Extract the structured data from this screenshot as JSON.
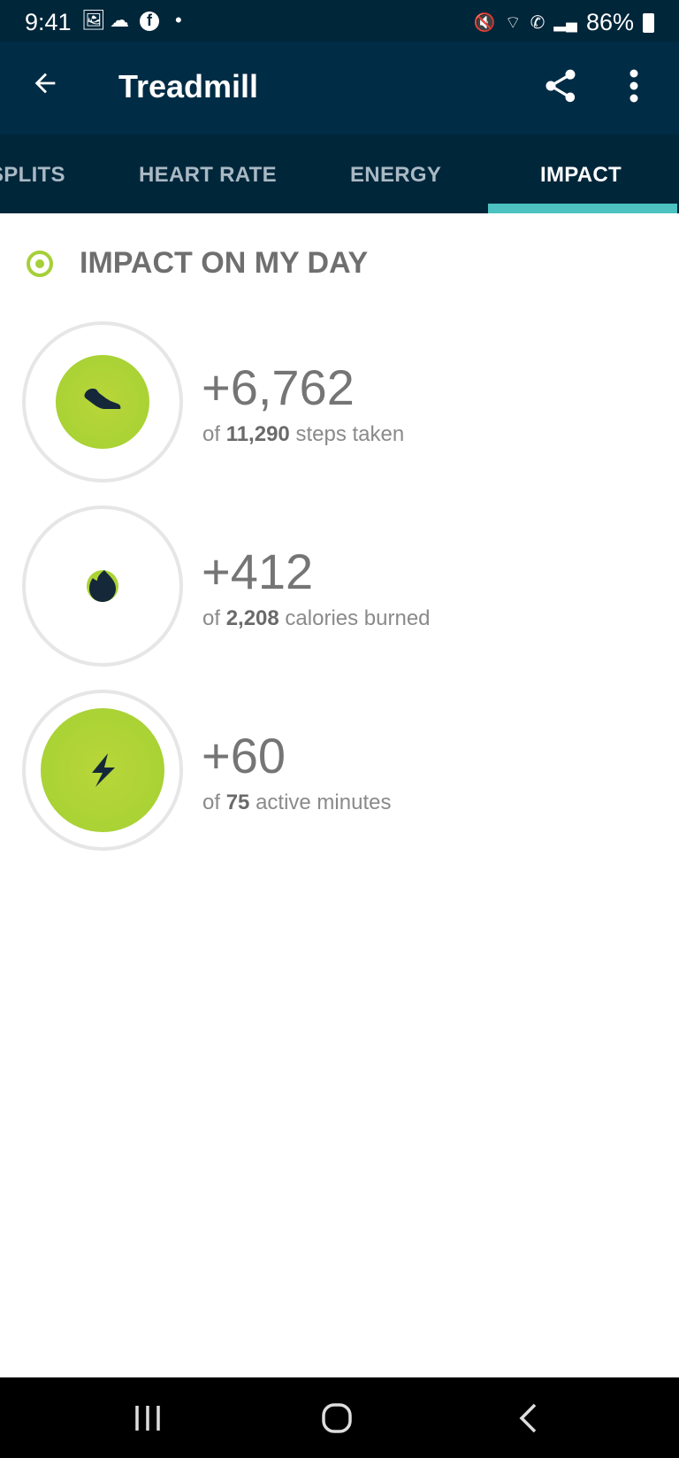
{
  "status_bar": {
    "time": "9:41",
    "battery": "86%",
    "icons": [
      "gallery-icon",
      "cloud-icon",
      "facebook-icon",
      "dot-icon",
      "mute-icon",
      "wifi-icon",
      "wifi-calling-icon",
      "signal-icon",
      "battery-icon"
    ]
  },
  "app_bar": {
    "title": "Treadmill",
    "back_icon": "arrow-left-icon",
    "share_icon": "share-icon",
    "more_icon": "more-vert-icon"
  },
  "tabs": [
    {
      "label": "SPLITS"
    },
    {
      "label": "HEART RATE"
    },
    {
      "label": "ENERGY"
    },
    {
      "label": "IMPACT",
      "active": true
    }
  ],
  "section": {
    "title": "IMPACT ON MY DAY"
  },
  "colors": {
    "accent": "#a6cf39",
    "tab_indicator": "#4cc3c0",
    "header_bg": "#002c45",
    "icon_dark": "#14283a"
  },
  "metrics": [
    {
      "icon": "shoe-icon",
      "value": "+6,762",
      "prefix": "of",
      "total": "11,290",
      "suffix": "steps taken",
      "fraction": 0.6
    },
    {
      "icon": "flame-icon",
      "value": "+412",
      "prefix": "of",
      "total": "2,208",
      "suffix": "calories burned",
      "fraction": 0.19
    },
    {
      "icon": "lightning-icon",
      "value": "+60",
      "prefix": "of",
      "total": "75",
      "suffix": "active minutes",
      "fraction": 0.8
    }
  ]
}
